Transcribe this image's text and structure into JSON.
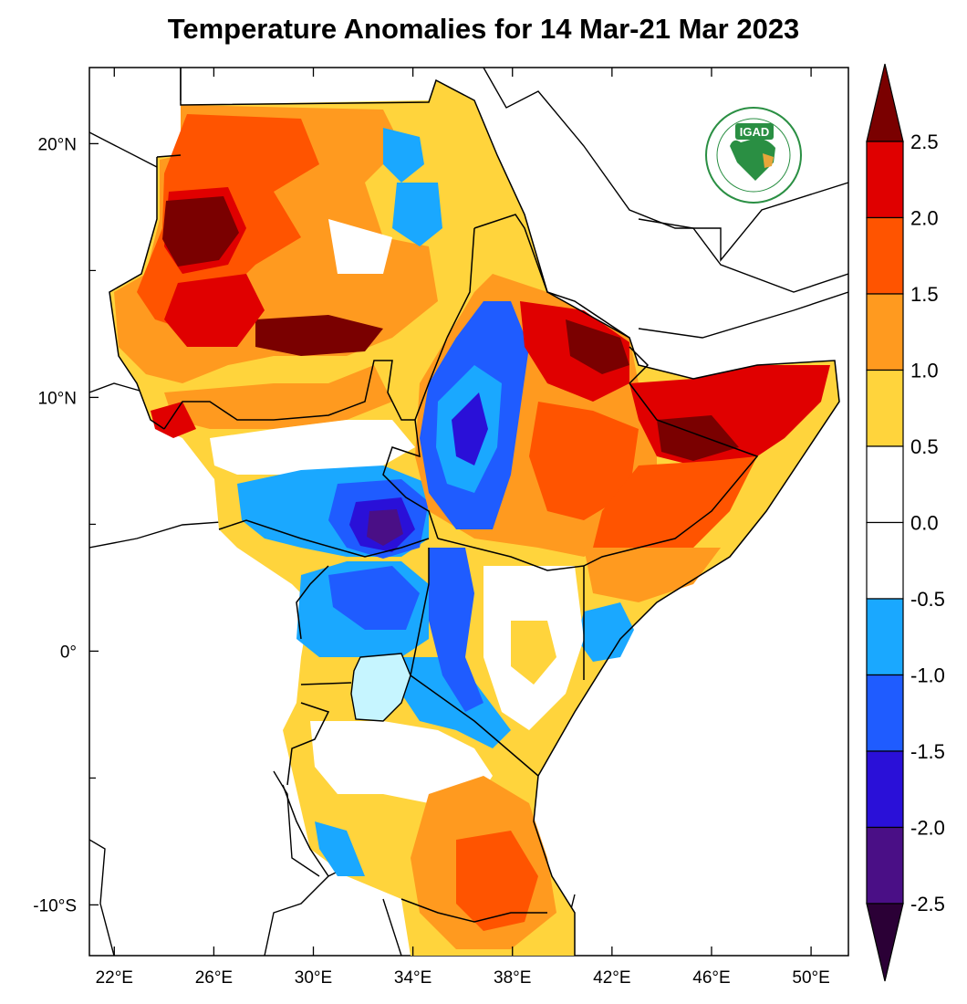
{
  "title": "Temperature Anomalies for 14 Mar-21 Mar 2023",
  "logo": {
    "text": "IGAD",
    "ring_text": "INTERGOVERNMENTAL AUTHORITY ON DEVELOPMENT"
  },
  "map": {
    "lon_range": [
      21,
      51.5
    ],
    "lat_range": [
      -12,
      23
    ],
    "x_ticks": [
      {
        "value": 22,
        "label": "22°E"
      },
      {
        "value": 26,
        "label": "26°E"
      },
      {
        "value": 30,
        "label": "30°E"
      },
      {
        "value": 34,
        "label": "34°E"
      },
      {
        "value": 38,
        "label": "38°E"
      },
      {
        "value": 42,
        "label": "42°E"
      },
      {
        "value": 46,
        "label": "46°E"
      },
      {
        "value": 50,
        "label": "50°E"
      }
    ],
    "y_ticks": [
      {
        "value": 20,
        "label": "20°N"
      },
      {
        "value": 10,
        "label": "10°N"
      },
      {
        "value": 0,
        "label": "0°"
      },
      {
        "value": -10,
        "label": "-10°S"
      }
    ]
  },
  "colorbar": {
    "levels": [
      "2.5",
      "2.0",
      "1.5",
      "1.0",
      "0.5",
      "0.0",
      "-0.5",
      "-1.0",
      "-1.5",
      "-2.0",
      "-2.5"
    ],
    "colors": [
      "#7a0000",
      "#e00000",
      "#ff5400",
      "#ff9a1f",
      "#ffd43c",
      "#ffffff",
      "#ffffff",
      "#1aa8ff",
      "#1f5cff",
      "#2a10d8",
      "#4a0f86",
      "#2b0036"
    ]
  },
  "legend_colors": {
    "very_hot": "#7a0000",
    "hot": "#e00000",
    "warm3": "#ff5400",
    "warm2": "#ff9a1f",
    "warm1": "#ffd43c",
    "neutral": "#ffffff",
    "cool1": "#1aa8ff",
    "cool2": "#1f5cff",
    "cool3": "#2a10d8",
    "cool4": "#4a0f86",
    "very_cool": "#2b0036",
    "lake": "#c6f5ff"
  }
}
